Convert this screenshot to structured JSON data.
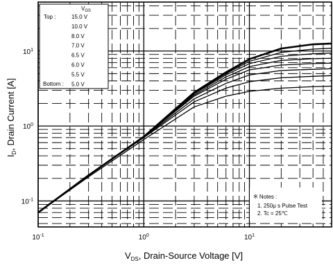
{
  "chart_data": {
    "type": "line",
    "xscale": "log",
    "yscale": "log",
    "xlim": [
      0.1,
      60
    ],
    "ylim": [
      0.045,
      45
    ],
    "grid": true,
    "legend_placement": "top-left",
    "x_ticks": [
      {
        "value": 0.1,
        "base": "10",
        "exp": "-1"
      },
      {
        "value": 1,
        "base": "10",
        "exp": "0"
      },
      {
        "value": 10,
        "base": "10",
        "exp": "1"
      }
    ],
    "y_ticks": [
      {
        "value": 0.1,
        "base": "10",
        "exp": "-1"
      },
      {
        "value": 1,
        "base": "10",
        "exp": "0"
      },
      {
        "value": 10,
        "base": "10",
        "exp": "1"
      }
    ],
    "xlabel": {
      "prefix": "V",
      "sub": "DS",
      "suffix": ", Drain-Source Voltage [V]"
    },
    "ylabel": {
      "prefix": "I",
      "sub": "D",
      "suffix": ", Drain Current [A]"
    },
    "legend": {
      "header": {
        "prefix": "V",
        "sub": "GS"
      },
      "top_label": "Top :",
      "bottom_label": "Bottom :",
      "entries": [
        "15.0 V",
        "10.0 V",
        "8.0 V",
        "7.0 V",
        "6.5 V",
        "6.0 V",
        "5.5 V",
        "5.0 V"
      ]
    },
    "notes": {
      "title": "※ Notes :",
      "line1": "1. 250μ s Pulse Test",
      "line2": "2. Tc = 25℃"
    },
    "series": [
      {
        "name": "15.0 V",
        "x": [
          0.1,
          0.3,
          1,
          3,
          6,
          10,
          20,
          40,
          60
        ],
        "y": [
          0.07,
          0.22,
          0.72,
          2.8,
          5.2,
          7.8,
          10.8,
          12.3,
          12.6
        ]
      },
      {
        "name": "10.0 V",
        "x": [
          0.1,
          0.3,
          1,
          3,
          6,
          10,
          20,
          40,
          60
        ],
        "y": [
          0.07,
          0.22,
          0.72,
          2.75,
          5.0,
          7.3,
          9.6,
          10.6,
          10.9
        ]
      },
      {
        "name": "8.0 V",
        "x": [
          0.1,
          0.3,
          1,
          3,
          6,
          10,
          20,
          40,
          60
        ],
        "y": [
          0.07,
          0.22,
          0.72,
          2.7,
          4.8,
          6.8,
          8.5,
          9.2,
          9.4
        ]
      },
      {
        "name": "7.0 V",
        "x": [
          0.1,
          0.3,
          1,
          3,
          6,
          10,
          20,
          40,
          60
        ],
        "y": [
          0.07,
          0.22,
          0.72,
          2.6,
          4.5,
          6.2,
          7.5,
          7.9,
          8.0
        ]
      },
      {
        "name": "6.5 V",
        "x": [
          0.1,
          0.3,
          1,
          3,
          6,
          10,
          20,
          40,
          60
        ],
        "y": [
          0.07,
          0.22,
          0.72,
          2.5,
          4.2,
          5.6,
          6.5,
          6.8,
          6.9
        ]
      },
      {
        "name": "6.0 V",
        "x": [
          0.1,
          0.3,
          1,
          3,
          6,
          10,
          20,
          40,
          60
        ],
        "y": [
          0.07,
          0.22,
          0.71,
          2.3,
          3.7,
          4.8,
          5.5,
          5.7,
          5.8
        ]
      },
      {
        "name": "5.5 V",
        "x": [
          0.1,
          0.3,
          1,
          3,
          6,
          10,
          20,
          40,
          60
        ],
        "y": [
          0.07,
          0.22,
          0.7,
          2.1,
          3.2,
          3.9,
          4.4,
          4.6,
          4.7
        ]
      },
      {
        "name": "5.0 V",
        "x": [
          0.1,
          0.3,
          1,
          3,
          6,
          10,
          20,
          40,
          60
        ],
        "y": [
          0.07,
          0.21,
          0.66,
          1.8,
          2.5,
          2.9,
          3.2,
          3.35,
          3.4
        ]
      }
    ]
  }
}
